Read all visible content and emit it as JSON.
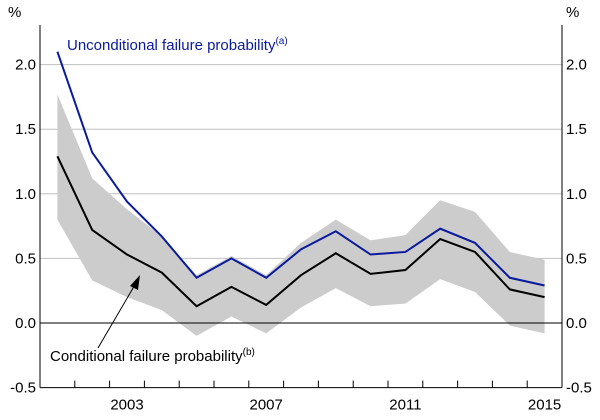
{
  "chart_data": {
    "type": "line",
    "x": [
      2001,
      2002,
      2003,
      2004,
      2005,
      2006,
      2007,
      2008,
      2009,
      2010,
      2011,
      2012,
      2013,
      2014,
      2015
    ],
    "x_tick_labels": [
      "2003",
      "2007",
      "2011",
      "2015"
    ],
    "y_unit_left": "%",
    "y_unit_right": "%",
    "ylim": [
      -0.5,
      2.5
    ],
    "y_ticks": [
      "-0.5",
      "0.0",
      "0.5",
      "1.0",
      "1.5",
      "2.0"
    ],
    "grid": true,
    "series": [
      {
        "name": "Unconditional failure probability",
        "note_marker": "(a)",
        "color": "#0a1a9c",
        "values": [
          2.1,
          1.32,
          0.94,
          0.67,
          0.35,
          0.5,
          0.35,
          0.57,
          0.71,
          0.53,
          0.55,
          0.73,
          0.62,
          0.35,
          0.29
        ]
      },
      {
        "name": "Conditional failure probability",
        "note_marker": "(b)",
        "color": "#000000",
        "values": [
          1.29,
          0.72,
          0.53,
          0.39,
          0.13,
          0.28,
          0.14,
          0.37,
          0.54,
          0.38,
          0.41,
          0.65,
          0.55,
          0.26,
          0.2
        ]
      }
    ],
    "band": {
      "color": "#cccccc",
      "upper": [
        1.77,
        1.12,
        0.88,
        0.67,
        0.37,
        0.52,
        0.37,
        0.62,
        0.8,
        0.64,
        0.68,
        0.95,
        0.86,
        0.55,
        0.49
      ],
      "lower": [
        0.8,
        0.33,
        0.2,
        0.1,
        -0.1,
        0.05,
        -0.08,
        0.12,
        0.27,
        0.13,
        0.15,
        0.34,
        0.24,
        -0.02,
        -0.08
      ]
    }
  }
}
